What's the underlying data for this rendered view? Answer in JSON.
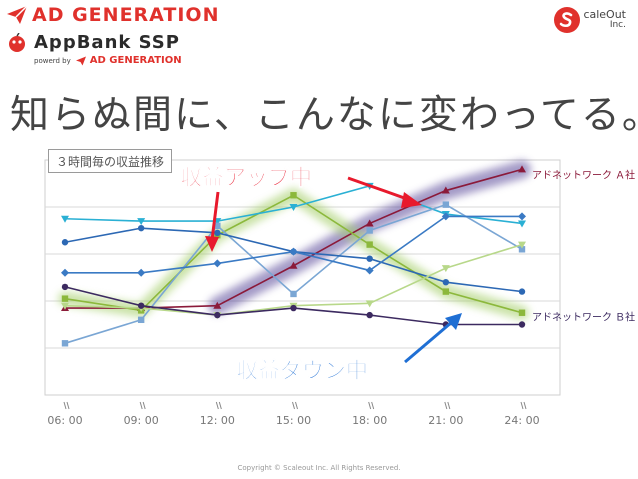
{
  "header": {
    "brand_primary": "AD GENERATION",
    "brand_secondary": "AppBank SSP",
    "powered_label": "powerd by",
    "powered_brand": "AD GENERATION",
    "partner_line1": "caleOut",
    "partner_line2": "Inc."
  },
  "headline": "知らぬ間に、こんなに変わってる。",
  "copyright": "Copyright © Scaleout Inc. All Rights Reserved.",
  "colors": {
    "brand_red": "#e0312c",
    "annotation_red": "#e8192c",
    "annotation_blue": "#1f6fd4",
    "glow_purple": "#5a4a9a",
    "glow_green": "#a8d070"
  },
  "annotations": {
    "up_label": "収益アップ中",
    "down_label": "収益ダウン中"
  },
  "chart_data": {
    "type": "line",
    "title": "３時間毎の収益推移",
    "xlabel": "",
    "ylabel": "",
    "categories": [
      "06: 00",
      "09: 00",
      "12: 00",
      "15: 00",
      "18: 00",
      "21: 00",
      "24: 00"
    ],
    "ylim": [
      0,
      10
    ],
    "grid": true,
    "series": [
      {
        "name": "アドネットワーク Ａ社",
        "color": "#8b1a3a",
        "marker": "triangle",
        "values": [
          3.7,
          3.7,
          3.8,
          5.5,
          7.3,
          8.7,
          9.6
        ]
      },
      {
        "name": "",
        "color": "#8cb83c",
        "marker": "square",
        "values": [
          4.1,
          3.6,
          6.8,
          8.5,
          6.4,
          4.4,
          3.5
        ]
      },
      {
        "name": "",
        "color": "#2ab0d4",
        "marker": "triangle-down",
        "values": [
          7.5,
          7.4,
          7.4,
          8.0,
          8.9,
          7.7,
          7.3
        ]
      },
      {
        "name": "",
        "color": "#7aa6d4",
        "marker": "square",
        "values": [
          2.2,
          3.2,
          7.2,
          4.3,
          7.0,
          8.1,
          6.2
        ]
      },
      {
        "name": "",
        "color": "#2c68b4",
        "marker": "circle",
        "values": [
          6.5,
          7.1,
          6.9,
          6.1,
          5.8,
          4.8,
          4.4
        ]
      },
      {
        "name": "",
        "color": "#3a7ac4",
        "marker": "diamond",
        "values": [
          5.2,
          5.2,
          5.6,
          6.1,
          5.3,
          7.6,
          7.6
        ]
      },
      {
        "name": "",
        "color": "#b8d88a",
        "marker": "triangle-down",
        "values": [
          3.8,
          3.7,
          3.4,
          3.8,
          3.9,
          5.4,
          6.4
        ]
      },
      {
        "name": "アドネットワーク Ｂ社",
        "color": "#3c2a60",
        "marker": "circle",
        "values": [
          4.6,
          3.8,
          3.4,
          3.7,
          3.4,
          3.0,
          3.0
        ]
      }
    ]
  }
}
